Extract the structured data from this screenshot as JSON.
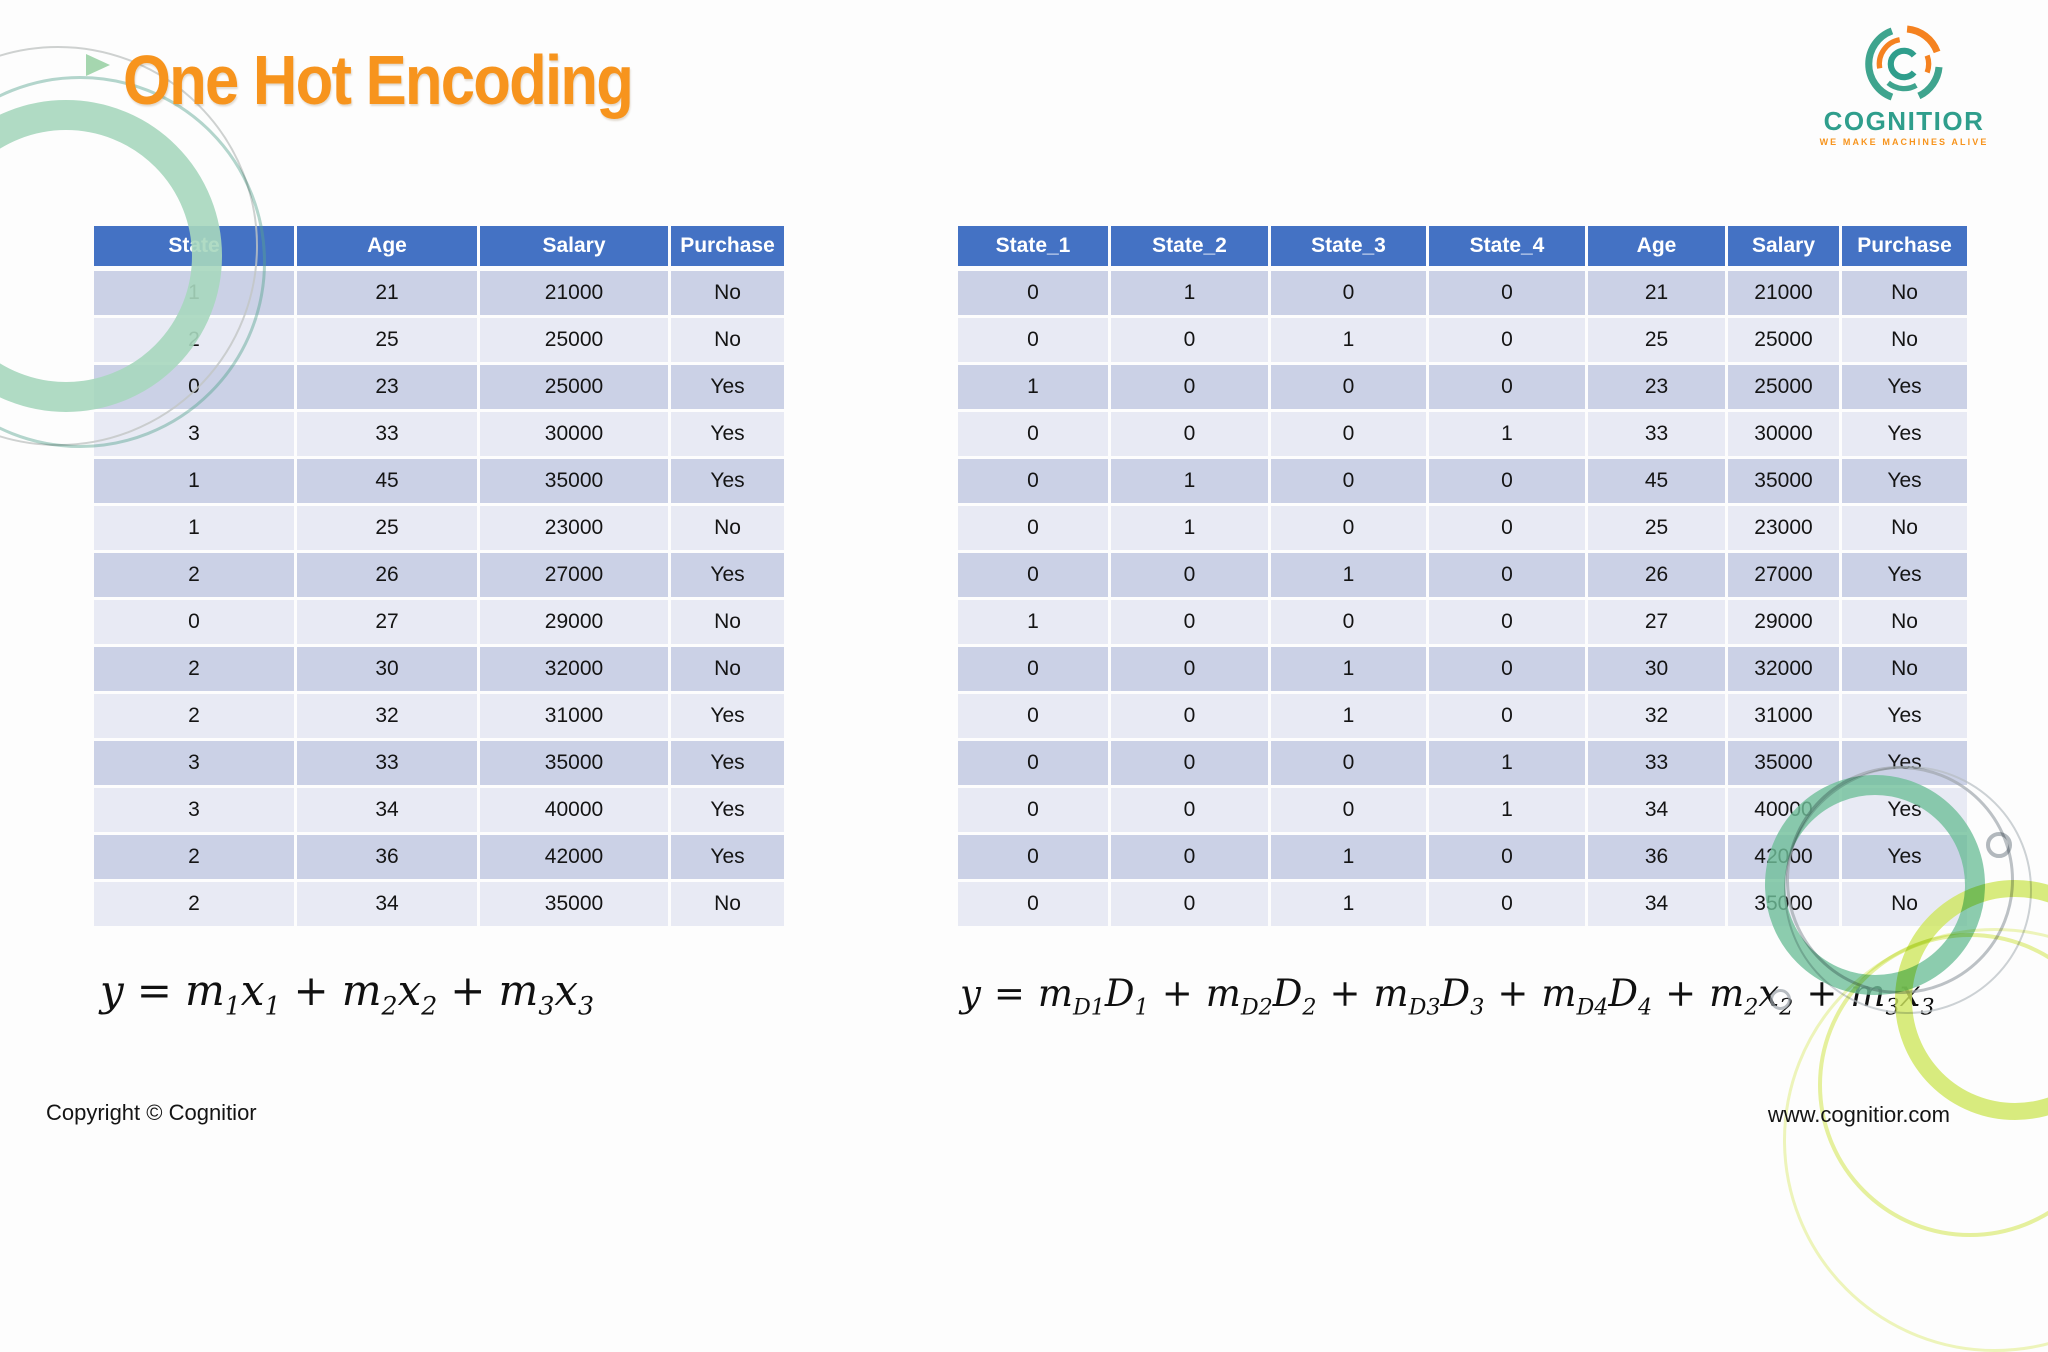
{
  "title": "One Hot Encoding",
  "logo": {
    "brand": "COGNITIOR",
    "tagline": "WE MAKE MACHINES ALIVE"
  },
  "tables": {
    "original": {
      "headers": [
        "State",
        "Age",
        "Salary",
        "Purchase"
      ],
      "rows": [
        [
          "1",
          "21",
          "21000",
          "No"
        ],
        [
          "2",
          "25",
          "25000",
          "No"
        ],
        [
          "0",
          "23",
          "25000",
          "Yes"
        ],
        [
          "3",
          "33",
          "30000",
          "Yes"
        ],
        [
          "1",
          "45",
          "35000",
          "Yes"
        ],
        [
          "1",
          "25",
          "23000",
          "No"
        ],
        [
          "2",
          "26",
          "27000",
          "Yes"
        ],
        [
          "0",
          "27",
          "29000",
          "No"
        ],
        [
          "2",
          "30",
          "32000",
          "No"
        ],
        [
          "2",
          "32",
          "31000",
          "Yes"
        ],
        [
          "3",
          "33",
          "35000",
          "Yes"
        ],
        [
          "3",
          "34",
          "40000",
          "Yes"
        ],
        [
          "2",
          "36",
          "42000",
          "Yes"
        ],
        [
          "2",
          "34",
          "35000",
          "No"
        ]
      ]
    },
    "encoded": {
      "headers": [
        "State_1",
        "State_2",
        "State_3",
        "State_4",
        "Age",
        "Salary",
        "Purchase"
      ],
      "rows": [
        [
          "0",
          "1",
          "0",
          "0",
          "21",
          "21000",
          "No"
        ],
        [
          "0",
          "0",
          "1",
          "0",
          "25",
          "25000",
          "No"
        ],
        [
          "1",
          "0",
          "0",
          "0",
          "23",
          "25000",
          "Yes"
        ],
        [
          "0",
          "0",
          "0",
          "1",
          "33",
          "30000",
          "Yes"
        ],
        [
          "0",
          "1",
          "0",
          "0",
          "45",
          "35000",
          "Yes"
        ],
        [
          "0",
          "1",
          "0",
          "0",
          "25",
          "23000",
          "No"
        ],
        [
          "0",
          "0",
          "1",
          "0",
          "26",
          "27000",
          "Yes"
        ],
        [
          "1",
          "0",
          "0",
          "0",
          "27",
          "29000",
          "No"
        ],
        [
          "0",
          "0",
          "1",
          "0",
          "30",
          "32000",
          "No"
        ],
        [
          "0",
          "0",
          "1",
          "0",
          "32",
          "31000",
          "Yes"
        ],
        [
          "0",
          "0",
          "0",
          "1",
          "33",
          "35000",
          "Yes"
        ],
        [
          "0",
          "0",
          "0",
          "1",
          "34",
          "40000",
          "Yes"
        ],
        [
          "0",
          "0",
          "1",
          "0",
          "36",
          "42000",
          "Yes"
        ],
        [
          "0",
          "0",
          "1",
          "0",
          "34",
          "35000",
          "No"
        ]
      ]
    }
  },
  "formulas": {
    "original": {
      "tokens": [
        {
          "v": "y"
        },
        {
          "o": "="
        },
        {
          "v": "m",
          "s": "1"
        },
        {
          "v": "x",
          "s": "1"
        },
        {
          "o": "+"
        },
        {
          "v": "m",
          "s": "2"
        },
        {
          "v": "x",
          "s": "2"
        },
        {
          "o": "+"
        },
        {
          "v": "m",
          "s": "3"
        },
        {
          "v": "x",
          "s": "3"
        }
      ]
    },
    "encoded": {
      "tokens": [
        {
          "v": "y"
        },
        {
          "o": "="
        },
        {
          "v": "m",
          "s": "D1"
        },
        {
          "v": "D",
          "s": "1"
        },
        {
          "o": "+"
        },
        {
          "v": "m",
          "s": "D2"
        },
        {
          "v": "D",
          "s": "2"
        },
        {
          "o": "+"
        },
        {
          "v": "m",
          "s": "D3"
        },
        {
          "v": "D",
          "s": "3"
        },
        {
          "o": "+"
        },
        {
          "v": "m",
          "s": "D4"
        },
        {
          "v": "D",
          "s": "4"
        },
        {
          "o": "+"
        },
        {
          "v": "m",
          "s": "2"
        },
        {
          "v": "x",
          "s": "2"
        },
        {
          "o": "+"
        },
        {
          "v": "m",
          "s": "3"
        },
        {
          "v": "x",
          "s": "3"
        }
      ]
    }
  },
  "footer": {
    "copyright": "Copyright © Cognitior",
    "website": "www.cognitior.com"
  },
  "colors": {
    "accent_orange": "#F7941D",
    "header_blue": "#4472C4",
    "brand_teal": "#2F9E8C",
    "row_dark": "#CBD1E6",
    "row_light": "#E8EAF4"
  }
}
